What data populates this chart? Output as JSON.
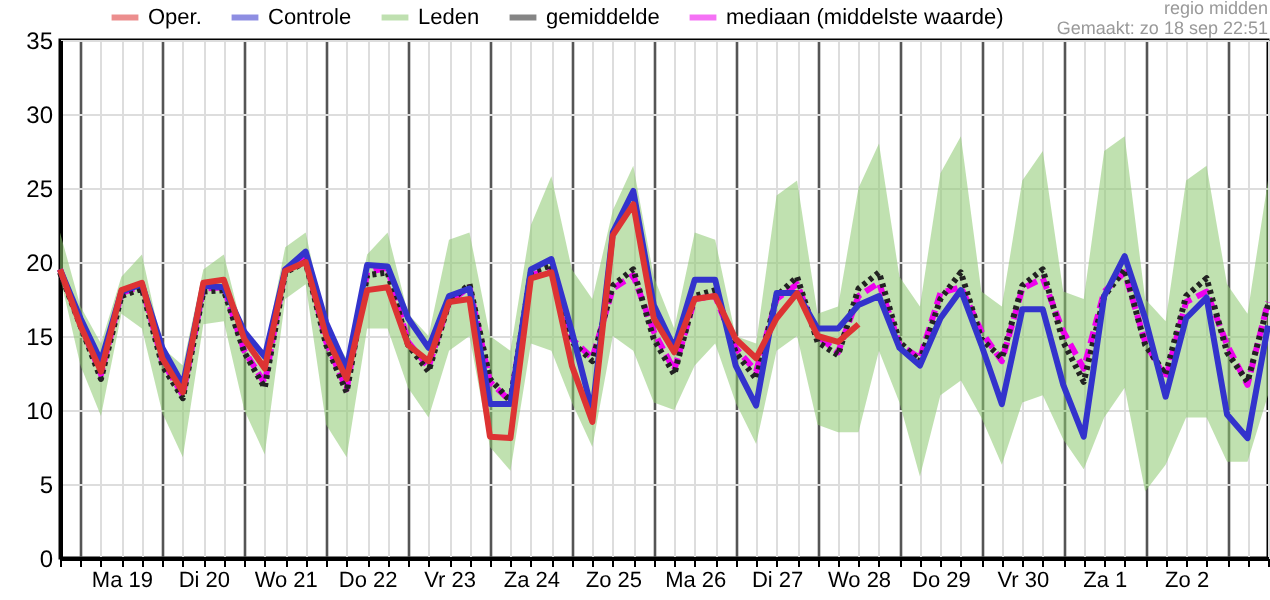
{
  "chart_data": {
    "type": "line",
    "annotations": [
      "regio midden",
      "Gemaakt: zo 18 sep 22:51"
    ],
    "categories": [
      null,
      null,
      null,
      "Ma 19",
      null,
      null,
      null,
      "Di 20",
      null,
      null,
      null,
      "Wo 21",
      null,
      null,
      null,
      "Do 22",
      null,
      null,
      null,
      "Vr 23",
      null,
      null,
      null,
      "Za 24",
      null,
      null,
      null,
      "Zo 25",
      null,
      null,
      null,
      "Ma 26",
      null,
      null,
      null,
      "Di 27",
      null,
      null,
      null,
      "Wo 28",
      null,
      null,
      null,
      "Do 29",
      null,
      null,
      null,
      "Vr 30",
      null,
      null,
      null,
      "Za 1",
      null,
      null,
      null,
      "Zo 2",
      null,
      null,
      null,
      null
    ],
    "series": [
      {
        "name": "Oper.",
        "color": "#dd3333",
        "line_style": "solid",
        "values": [
          19.5,
          15.7,
          12.6,
          18.1,
          18.6,
          13.5,
          11.2,
          18.6,
          18.8,
          14.8,
          12.8,
          19.4,
          20.0,
          15.0,
          12.1,
          18.1,
          18.3,
          14.4,
          13.3,
          17.3,
          17.5,
          8.2,
          8.1,
          18.9,
          19.3,
          13.0,
          9.2,
          21.8,
          23.9,
          16.2,
          13.9,
          17.5,
          17.7,
          14.8,
          13.5,
          16.2,
          17.9,
          15.0,
          14.6,
          15.8,
          null,
          null,
          null,
          null,
          null,
          null,
          null,
          null,
          null,
          null,
          null,
          null,
          null,
          null,
          null,
          null,
          null,
          null,
          null,
          null
        ]
      },
      {
        "name": "Controle",
        "color": "#3333cc",
        "line_style": "solid",
        "values": [
          19.5,
          16.2,
          13.3,
          18.0,
          18.5,
          14.2,
          11.7,
          18.4,
          18.3,
          15.3,
          13.6,
          19.5,
          20.7,
          15.9,
          12.8,
          19.8,
          19.7,
          16.2,
          14.2,
          17.7,
          18.2,
          10.4,
          10.4,
          19.5,
          20.2,
          15.3,
          9.9,
          22.0,
          24.8,
          17.1,
          14.2,
          18.8,
          18.8,
          13.0,
          10.3,
          17.9,
          17.9,
          15.5,
          15.5,
          17.1,
          17.7,
          14.2,
          13.0,
          16.2,
          18.1,
          14.4,
          10.4,
          16.8,
          16.8,
          11.7,
          8.2,
          17.7,
          20.4,
          16.2,
          10.9,
          16.2,
          17.6,
          9.7,
          8.1,
          15.7
        ]
      },
      {
        "name": "Leden",
        "color": "#8cc870",
        "values": [
          null,
          null,
          null,
          null,
          null,
          null,
          null,
          null,
          null,
          null,
          null,
          null,
          null,
          null,
          null,
          null,
          null,
          null,
          null,
          null,
          null,
          null,
          null,
          null,
          null,
          null,
          null,
          null,
          null,
          null,
          null,
          null,
          null,
          null,
          null,
          null,
          null,
          null,
          null,
          null,
          null,
          null,
          null,
          null,
          null,
          null,
          null,
          null,
          null,
          null,
          null,
          null,
          null,
          null,
          null,
          null,
          null,
          null,
          null,
          null
        ],
        "lower": [
          19,
          13,
          9.6,
          16.5,
          15.5,
          9.8,
          6.8,
          15.8,
          16,
          10,
          7,
          17.5,
          18.5,
          9,
          6.8,
          15.5,
          15.5,
          11.5,
          9.5,
          14,
          15,
          7.5,
          5.9,
          14.5,
          14,
          10.5,
          7.5,
          15,
          14,
          10.5,
          10,
          13,
          14.5,
          10.5,
          7.7,
          14,
          15,
          9,
          8.5,
          8.5,
          14,
          10.5,
          5.5,
          11,
          12,
          9.5,
          6.3,
          10.5,
          11,
          8,
          6,
          9.5,
          11.5,
          4.5,
          6.3,
          9.5,
          9.5,
          6.5,
          6.5,
          11
        ],
        "upper": [
          22,
          17,
          14.5,
          19,
          20.5,
          14.2,
          13,
          19.5,
          20.5,
          15,
          14,
          21,
          22,
          15.5,
          13.5,
          20.5,
          22,
          16.5,
          15,
          21.5,
          22,
          15,
          14,
          22.5,
          25.8,
          19.5,
          17.5,
          23.5,
          26.5,
          19,
          15.5,
          22,
          21.5,
          15,
          14.5,
          24.5,
          25.5,
          16.5,
          17,
          25,
          28,
          19,
          17,
          26,
          28.5,
          18,
          17,
          25.5,
          27.5,
          18,
          17.5,
          27.5,
          28.5,
          17.5,
          16,
          25.5,
          26.5,
          18.5,
          16.5,
          25.5
        ]
      },
      {
        "name": "gemiddelde",
        "color": "#222222",
        "line_style": "dotted",
        "values": [
          19.3,
          15.7,
          12.1,
          17.7,
          18.2,
          13.0,
          10.8,
          18.0,
          18.1,
          13.9,
          11.5,
          19.3,
          20.0,
          14.4,
          11.2,
          19.1,
          19.3,
          14.4,
          12.6,
          17.3,
          18.5,
          12.1,
          10.6,
          19.3,
          19.8,
          14.6,
          13.3,
          18.4,
          19.5,
          14.8,
          12.4,
          17.7,
          18.1,
          13.9,
          12.1,
          17.7,
          19.0,
          14.6,
          13.7,
          18.2,
          19.3,
          14.6,
          13.3,
          17.5,
          19.3,
          14.8,
          13.5,
          18.4,
          19.5,
          14.6,
          11.9,
          17.7,
          19.5,
          14.4,
          12.4,
          17.7,
          18.9,
          13.9,
          11.9,
          17.1
        ]
      },
      {
        "name": "mediaan (middelste waarde)",
        "color": "#ee00ee",
        "line_style": "dashed",
        "values": [
          19.5,
          15.8,
          12.4,
          17.9,
          18.4,
          13.3,
          11.0,
          18.2,
          18.3,
          14.0,
          11.8,
          19.5,
          20.2,
          14.6,
          11.4,
          19.3,
          19.6,
          14.6,
          12.9,
          17.3,
          18.3,
          11.9,
          10.6,
          19.1,
          19.5,
          14.8,
          13.5,
          18.2,
          19.1,
          15.3,
          12.7,
          17.5,
          17.7,
          14.2,
          12.6,
          17.5,
          18.5,
          15.0,
          13.9,
          17.7,
          18.6,
          14.4,
          13.5,
          17.9,
          18.3,
          15.3,
          13.3,
          18.2,
          18.9,
          15.3,
          12.8,
          18.0,
          19.3,
          14.6,
          12.1,
          17.3,
          18.0,
          14.4,
          11.7,
          17.3
        ]
      }
    ],
    "ylim": [
      0,
      35
    ],
    "yticks": [
      0,
      5,
      10,
      15,
      20,
      25,
      30,
      35
    ],
    "grid": true,
    "legend": "top"
  }
}
